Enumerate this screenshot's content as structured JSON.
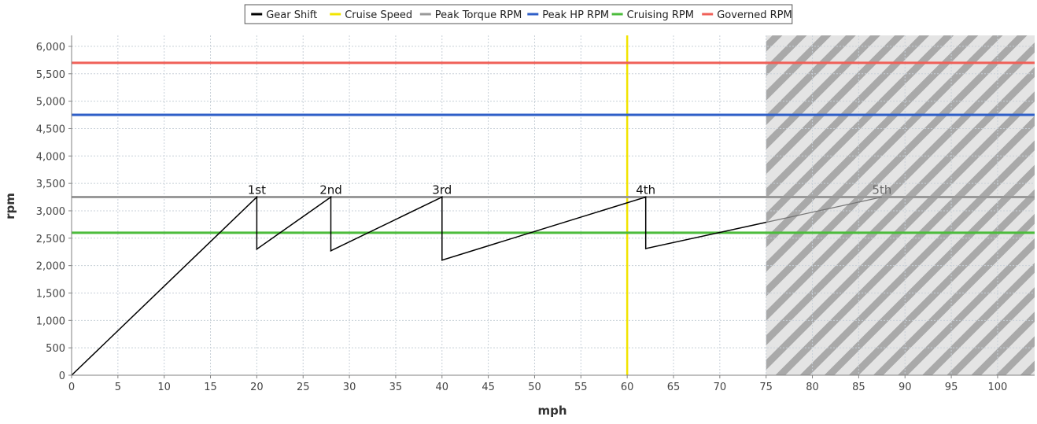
{
  "chart_data": {
    "type": "line",
    "title": "",
    "xlabel": "mph",
    "ylabel": "rpm",
    "xlim": [
      0,
      104
    ],
    "ylim": [
      0,
      6200
    ],
    "grid": true,
    "legend_position": "top-center",
    "x_ticks": [
      0,
      5,
      10,
      15,
      20,
      25,
      30,
      35,
      40,
      45,
      50,
      55,
      60,
      65,
      70,
      75,
      80,
      85,
      90,
      95,
      100
    ],
    "y_ticks": [
      0,
      500,
      1000,
      1500,
      2000,
      2500,
      3000,
      3500,
      4000,
      4500,
      5000,
      5500,
      6000
    ],
    "y_tick_labels": [
      "0",
      "500",
      "1,000",
      "1,500",
      "2,000",
      "2,500",
      "3,000",
      "3,500",
      "4,000",
      "4,500",
      "5,000",
      "5,500",
      "6,000"
    ],
    "legend": [
      {
        "name": "Gear Shift",
        "color": "#000000"
      },
      {
        "name": "Cruise Speed",
        "color": "#f2e400"
      },
      {
        "name": "Peak Torque RPM",
        "color": "#999999"
      },
      {
        "name": "Peak HP RPM",
        "color": "#2f5fc8"
      },
      {
        "name": "Cruising RPM",
        "color": "#4cbc3c"
      },
      {
        "name": "Governed RPM",
        "color": "#f06058"
      }
    ],
    "series": [
      {
        "name": "Gear Shift",
        "color": "#000000",
        "points": [
          [
            0,
            0
          ],
          [
            20,
            3250
          ],
          [
            20,
            2300
          ],
          [
            28,
            3250
          ],
          [
            28,
            2270
          ],
          [
            40,
            3250
          ],
          [
            40,
            2100
          ],
          [
            62,
            3250
          ],
          [
            62,
            2310
          ],
          [
            75,
            2790
          ]
        ],
        "shaded_continuation": [
          [
            75,
            2790
          ],
          [
            87.5,
            3250
          ]
        ]
      },
      {
        "name": "Cruise Speed",
        "color": "#f2e400",
        "x_value": 60
      },
      {
        "name": "Peak Torque RPM",
        "color": "#999999",
        "y_value": 3250
      },
      {
        "name": "Peak HP RPM",
        "color": "#2f5fc8",
        "y_value": 4750
      },
      {
        "name": "Cruising RPM",
        "color": "#4cbc3c",
        "y_value": 2600
      },
      {
        "name": "Governed RPM",
        "color": "#f06058",
        "y_value": 5700
      }
    ],
    "annotations": [
      {
        "text": "1st",
        "x": 20,
        "y": 3250
      },
      {
        "text": "2nd",
        "x": 28,
        "y": 3250
      },
      {
        "text": "3rd",
        "x": 40,
        "y": 3250
      },
      {
        "text": "4th",
        "x": 62,
        "y": 3250
      },
      {
        "text": "5th",
        "x": 87.5,
        "y": 3250,
        "muted": true
      }
    ],
    "shaded_region": {
      "x_start": 75,
      "x_end": 104,
      "pattern": "diagonal-stripes"
    }
  }
}
